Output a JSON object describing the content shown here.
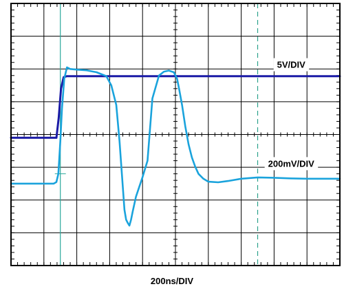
{
  "chart_data": {
    "type": "line",
    "title": "",
    "xlabel": "200ns/DIV",
    "ylabel": "",
    "grid": true,
    "xlim": [
      0,
      10
    ],
    "ylim": [
      -4,
      4
    ],
    "x_unit": "divisions (200ns/DIV)",
    "y_unit": "divisions",
    "cursors_x": [
      1.5,
      7.5
    ],
    "colors": {
      "grid": "#000000",
      "ch1": "#1a1aa6",
      "ch2": "#1aa3dc",
      "cursor1": "#2ba89c",
      "cursor2": "#2aa08a"
    },
    "series": [
      {
        "label": "5V/DIV",
        "color": "#1a1aa6",
        "x": [
          0,
          1.3,
          1.38,
          1.45,
          1.52,
          1.6,
          1.7,
          1.8,
          1.9,
          10
        ],
        "y": [
          -0.1,
          -0.1,
          -0.1,
          0.5,
          1.4,
          1.75,
          1.78,
          1.78,
          1.78,
          1.78
        ]
      },
      {
        "label": "200mV/DIV",
        "color": "#1aa3dc",
        "x": [
          0,
          1.3,
          1.38,
          1.44,
          1.5,
          1.55,
          1.62,
          1.7,
          1.8,
          2.0,
          2.3,
          2.6,
          2.9,
          3.05,
          3.2,
          3.3,
          3.4,
          3.45,
          3.5,
          3.55,
          3.6,
          3.65,
          3.7,
          3.8,
          3.9,
          4.0,
          4.15,
          4.3,
          4.5,
          4.65,
          4.8,
          4.95,
          5.05,
          5.12,
          5.2,
          5.3,
          5.4,
          5.5,
          5.6,
          5.7,
          5.85,
          6.0,
          6.3,
          6.6,
          7.0,
          7.5,
          8.0,
          8.5,
          9.0,
          9.5,
          10.0
        ],
        "y": [
          -1.5,
          -1.5,
          -1.45,
          -1.2,
          -0.2,
          0.8,
          1.7,
          2.05,
          2.0,
          1.98,
          1.96,
          1.9,
          1.78,
          1.5,
          0.9,
          -0.2,
          -1.6,
          -2.3,
          -2.6,
          -2.7,
          -2.78,
          -2.6,
          -2.35,
          -1.9,
          -1.6,
          -1.3,
          -0.8,
          1.1,
          1.8,
          1.92,
          1.95,
          1.9,
          1.7,
          1.35,
          0.9,
          0.25,
          -0.3,
          -0.7,
          -0.98,
          -1.2,
          -1.35,
          -1.44,
          -1.46,
          -1.42,
          -1.35,
          -1.31,
          -1.32,
          -1.34,
          -1.35,
          -1.35,
          -1.35
        ],
        "_note": "x/y in scope divisions"
      }
    ]
  },
  "labels": {
    "ch1": "5V/DIV",
    "ch2": "200mV/DIV",
    "x": "200ns/DIV"
  }
}
